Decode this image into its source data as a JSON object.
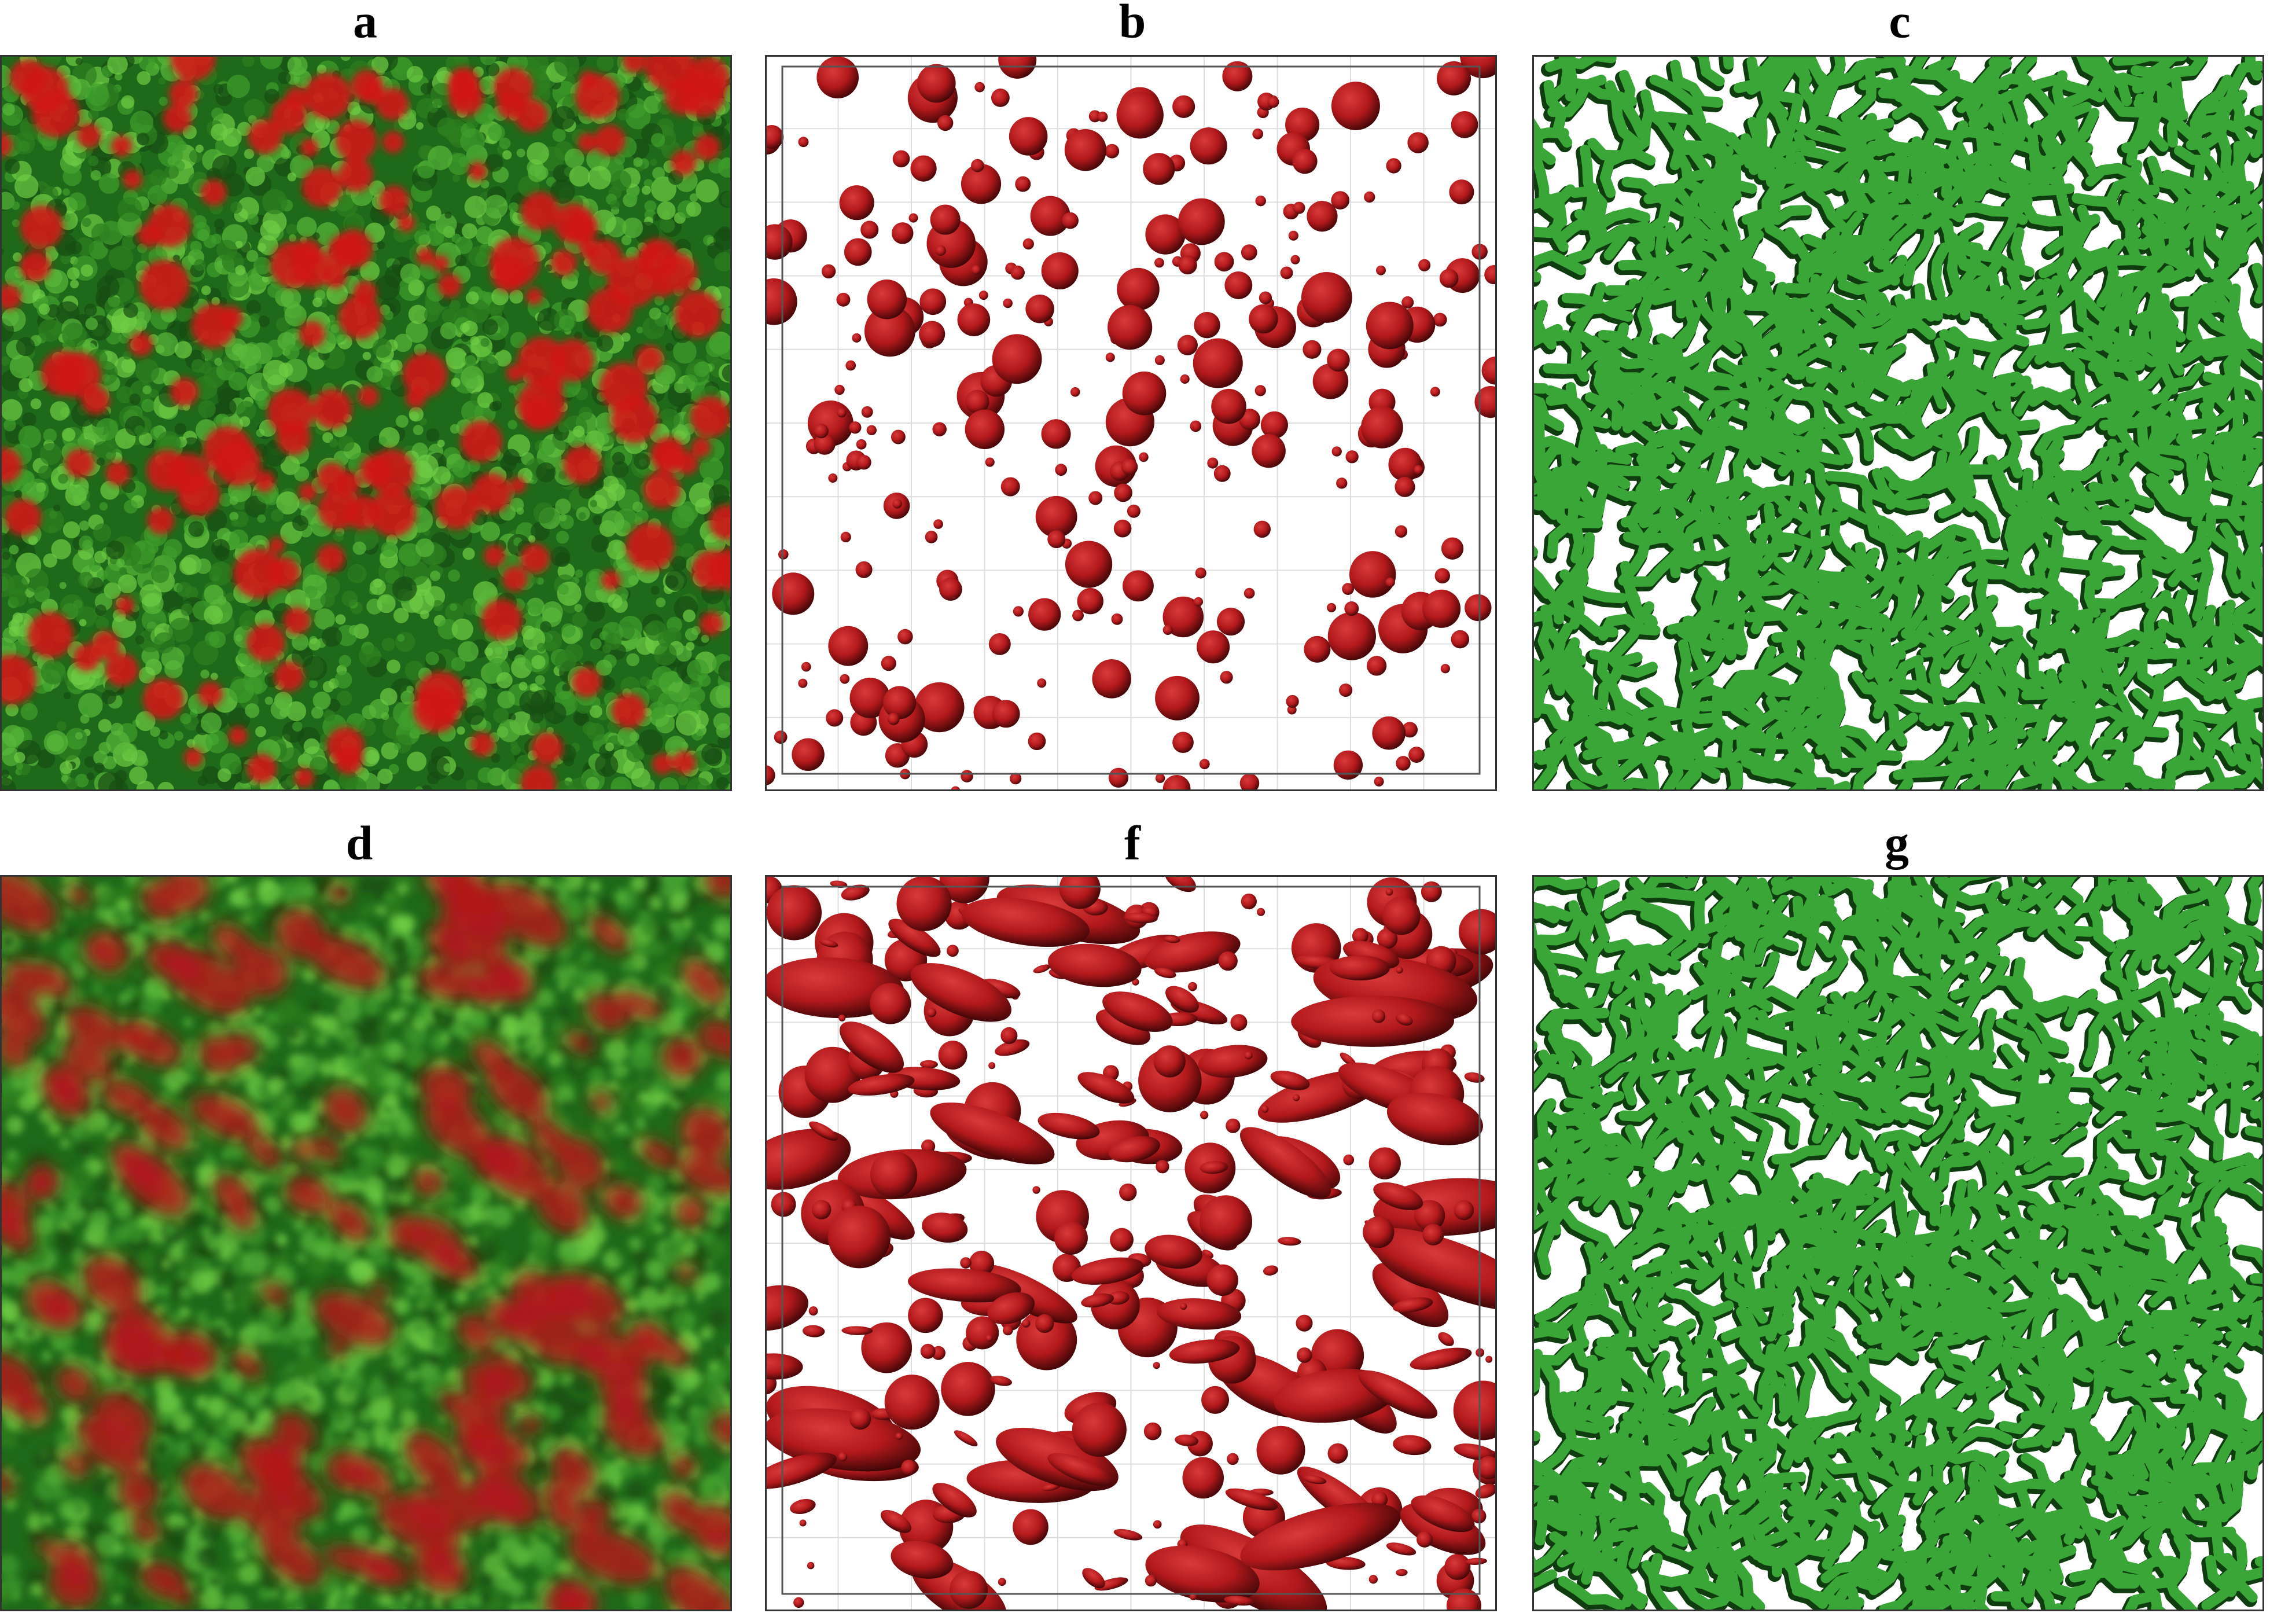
{
  "panels": [
    {
      "label": "a"
    },
    {
      "label": "b"
    },
    {
      "label": "c"
    },
    {
      "label": "d"
    },
    {
      "label": "f"
    },
    {
      "label": "g"
    }
  ]
}
